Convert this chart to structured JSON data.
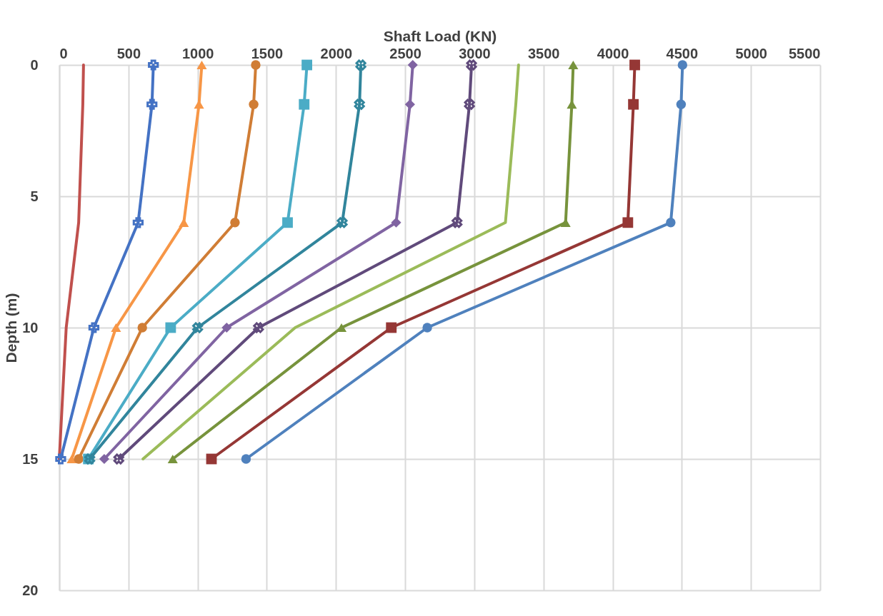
{
  "chart_data": {
    "type": "line",
    "xlabel": "Shaft Load (KN)",
    "ylabel": "Depth (m)",
    "xlim": [
      0,
      5500
    ],
    "xticks": [
      0,
      500,
      1000,
      1500,
      2000,
      2500,
      3000,
      3500,
      4000,
      4500,
      5000,
      5500
    ],
    "ylim": [
      20,
      0
    ],
    "yticks": [
      0,
      5,
      10,
      15,
      20
    ],
    "grid": true,
    "series": [
      {
        "color": "#c0504d",
        "marker": "none",
        "x": [
          175,
          170,
          140,
          50,
          0
        ],
        "values": [
          0,
          1.5,
          6,
          10,
          15
        ]
      },
      {
        "color": "#4472c4",
        "marker": "cross",
        "x": [
          680,
          670,
          570,
          250,
          10
        ],
        "values": [
          0,
          1.5,
          6,
          10,
          15
        ]
      },
      {
        "color": "#f79646",
        "marker": "triangle",
        "x": [
          1030,
          1010,
          900,
          410,
          90
        ],
        "values": [
          0,
          1.5,
          6,
          10,
          15
        ]
      },
      {
        "color": "#d07d35",
        "marker": "circle",
        "x": [
          1420,
          1405,
          1270,
          600,
          140
        ],
        "values": [
          0,
          1.5,
          6,
          10,
          15
        ]
      },
      {
        "color": "#4bacc6",
        "marker": "square",
        "x": [
          1790,
          1770,
          1650,
          805,
          210
        ],
        "values": [
          0,
          1.5,
          6,
          10,
          15
        ]
      },
      {
        "color": "#31859c",
        "marker": "x",
        "x": [
          2180,
          2170,
          2045,
          1000,
          220
        ],
        "values": [
          0,
          1.5,
          6,
          10,
          15
        ]
      },
      {
        "color": "#8064a2",
        "marker": "diamond",
        "x": [
          2555,
          2535,
          2435,
          1210,
          325
        ],
        "values": [
          0,
          1.5,
          6,
          10,
          15
        ]
      },
      {
        "color": "#604a7b",
        "marker": "x",
        "x": [
          2980,
          2965,
          2875,
          1440,
          430
        ],
        "values": [
          0,
          1.5,
          6,
          10,
          15
        ]
      },
      {
        "color": "#9bbb59",
        "marker": "none",
        "x": [
          3320,
          3300,
          3225,
          1705,
          605
        ],
        "values": [
          0,
          1.5,
          6,
          10,
          15
        ]
      },
      {
        "color": "#77933c",
        "marker": "triangle",
        "x": [
          3715,
          3705,
          3660,
          2040,
          820
        ],
        "values": [
          0,
          1.5,
          6,
          10,
          15
        ]
      },
      {
        "color": "#953735",
        "marker": "square",
        "x": [
          4160,
          4150,
          4110,
          2400,
          1100
        ],
        "values": [
          0,
          1.5,
          6,
          10,
          15
        ]
      },
      {
        "color": "#4f81bd",
        "marker": "circle",
        "x": [
          4505,
          4495,
          4420,
          2660,
          1350
        ],
        "values": [
          0,
          1.5,
          6,
          10,
          15
        ]
      }
    ]
  }
}
